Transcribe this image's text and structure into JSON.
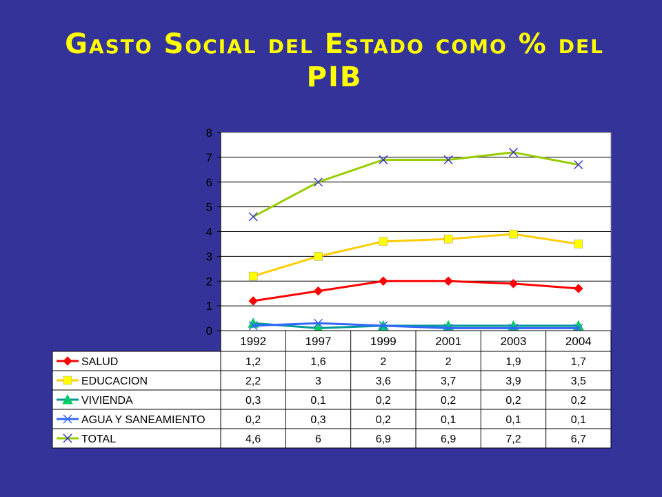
{
  "slide": {
    "title": "Gasto Social del Estado como % del PIB"
  },
  "colors": {
    "background": "#333399",
    "title": "#FFFF00",
    "plot_area": "#FFFFFF",
    "SALUD": "#FF0000",
    "EDUCACION": "#FFCC00",
    "VIVIENDA": "#009999",
    "AGUA Y SANEAMIENTO": "#3366FF",
    "TOTAL": "#99CC00"
  },
  "chart_data": {
    "type": "line",
    "title": "",
    "xlabel": "",
    "ylabel": "",
    "categories": [
      "1992",
      "1997",
      "1999",
      "2001",
      "2003",
      "2004"
    ],
    "ylim": [
      0,
      8
    ],
    "yticks": [
      0,
      1,
      2,
      3,
      4,
      5,
      6,
      7,
      8
    ],
    "grid": "horizontal",
    "legend": "data-table-below",
    "series": [
      {
        "name": "SALUD",
        "marker": "diamond",
        "marker_color": "#FF0000",
        "values": [
          1.2,
          1.6,
          2,
          2,
          1.9,
          1.7
        ],
        "labels": [
          "1,2",
          "1,6",
          "2",
          "2",
          "1,9",
          "1,7"
        ]
      },
      {
        "name": "EDUCACION",
        "marker": "square",
        "marker_color": "#FFFF00",
        "values": [
          2.2,
          3,
          3.6,
          3.7,
          3.9,
          3.5
        ],
        "labels": [
          "2,2",
          "3",
          "3,6",
          "3,7",
          "3,9",
          "3,5"
        ]
      },
      {
        "name": "VIVIENDA",
        "marker": "triangle",
        "marker_color": "#00CC66",
        "values": [
          0.3,
          0.1,
          0.2,
          0.2,
          0.2,
          0.2
        ],
        "labels": [
          "0,3",
          "0,1",
          "0,2",
          "0,2",
          "0,2",
          "0,2"
        ]
      },
      {
        "name": "AGUA Y SANEAMIENTO",
        "marker": "x",
        "marker_color": "#3366FF",
        "values": [
          0.2,
          0.3,
          0.2,
          0.1,
          0.1,
          0.1
        ],
        "labels": [
          "0,2",
          "0,3",
          "0,2",
          "0,1",
          "0,1",
          "0,1"
        ]
      },
      {
        "name": "TOTAL",
        "marker": "x",
        "marker_color": "#3333CC",
        "values": [
          4.6,
          6,
          6.9,
          6.9,
          7.2,
          6.7
        ],
        "labels": [
          "4,6",
          "6",
          "6,9",
          "6,9",
          "7,2",
          "6,7"
        ]
      }
    ]
  }
}
